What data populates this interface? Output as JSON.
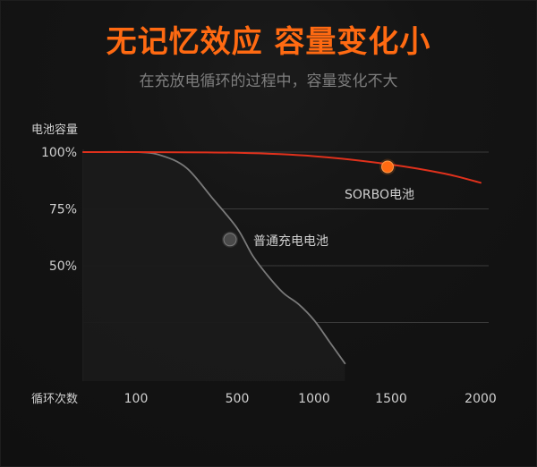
{
  "title": "无记忆效应 容量变化小",
  "subtitle": "在充放电循环的过程中，容量变化不大",
  "colors": {
    "accent": "#ff6a12",
    "sorbo": "#e0311c",
    "normal": "#7a7a7a",
    "grid": "#3b3b3b",
    "background": "#121212"
  },
  "chart_data": {
    "type": "line",
    "ylabel": "电池容量",
    "xlabel": "循环次数",
    "yticks": [
      "100%",
      "75%",
      "50%"
    ],
    "xticks": [
      "100",
      "500",
      "1000",
      "1500",
      "2000"
    ],
    "series": [
      {
        "name": "SORBO电池",
        "x": [
          0,
          100,
          500,
          1000,
          1500,
          1800,
          2000
        ],
        "y": [
          100,
          100,
          99.7,
          98.2,
          94.5,
          90.5,
          86.5
        ]
      },
      {
        "name": "普通充电电池",
        "x": [
          0,
          100,
          200,
          300,
          400,
          500,
          600,
          700,
          800,
          900,
          1000,
          1100,
          1200
        ],
        "y": [
          100,
          100,
          98.5,
          93,
          80,
          66.5,
          54.5,
          45.5,
          38,
          33,
          26,
          16.5,
          7
        ]
      }
    ],
    "annotations": [
      {
        "label": "SORBO电池",
        "x": 1500,
        "y": 93.5
      },
      {
        "label": "普通充电电池",
        "x": 500,
        "y": 61.5
      }
    ]
  }
}
